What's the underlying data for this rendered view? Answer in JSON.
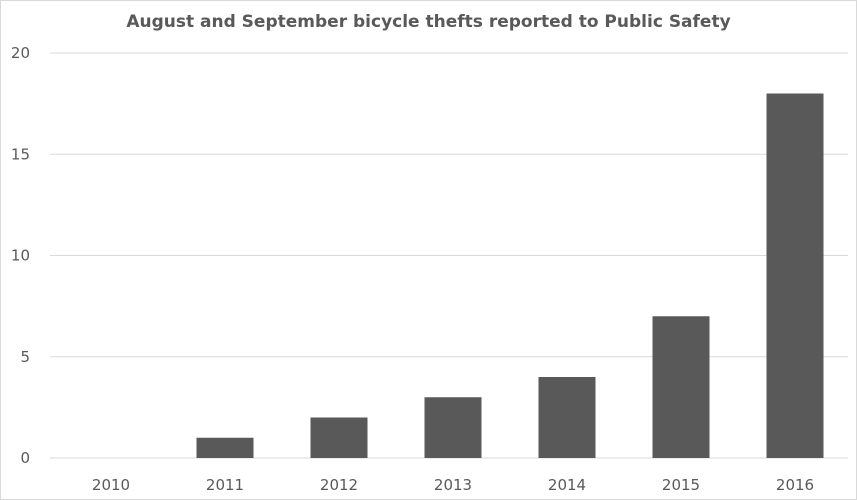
{
  "chart_data": {
    "type": "bar",
    "title": "August and September bicycle thefts reported to Public Safety",
    "categories": [
      "2010",
      "2011",
      "2012",
      "2013",
      "2014",
      "2015",
      "2016"
    ],
    "values": [
      0,
      1,
      2,
      3,
      4,
      7,
      18
    ],
    "xlabel": "",
    "ylabel": "",
    "ylim": [
      0,
      20
    ],
    "yticks": [
      0,
      5,
      10,
      15,
      20
    ],
    "grid": true,
    "legend": "none",
    "bar_color": "#595959",
    "grid_color": "#d9d9d9"
  }
}
